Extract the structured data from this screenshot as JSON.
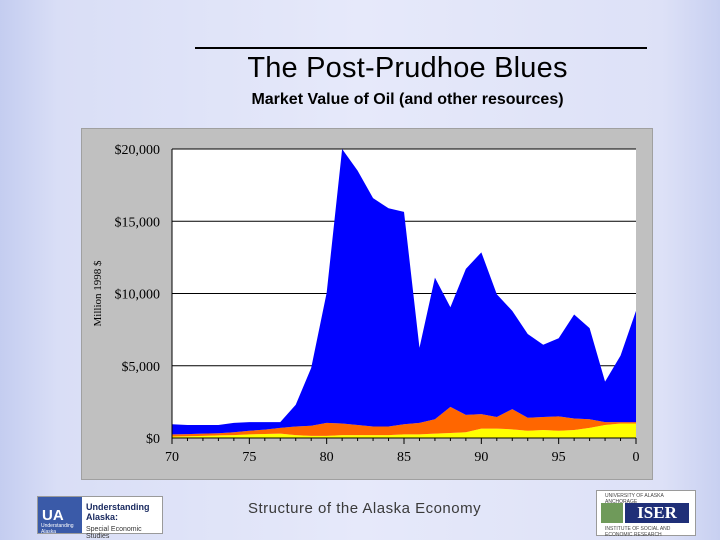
{
  "slide": {
    "title": "The Post-Prudhoe Blues",
    "subtitle": "Market Value of Oil (and other resources)",
    "footer": "Structure of the Alaska Economy"
  },
  "logos": {
    "left_mark": "UA",
    "left_mark_small": "Understanding Alaska",
    "left_title": "Understanding Alaska:",
    "left_sub": "Special Economic Studies",
    "right_name": "ISER",
    "right_top": "UNIVERSITY OF ALASKA ANCHORAGE",
    "right_bottom": "INSTITUTE OF SOCIAL AND ECONOMIC RESEARCH"
  },
  "colors": {
    "oil": "#0000ff",
    "orange": "#ff6600",
    "yellow": "#ffff00",
    "plot_bg": "#ffffff",
    "frame_bg": "#c0c0c0"
  },
  "chart_data": {
    "type": "area",
    "stacked": true,
    "title": "",
    "xlabel": "",
    "ylabel": "Million 1998 $",
    "ylim": [
      0,
      20000
    ],
    "xlim": [
      1970,
      2000
    ],
    "grid": {
      "horizontal": true,
      "vertical": false
    },
    "legend": "none",
    "y_ticks": [
      "$0",
      "$5,000",
      "$10,000",
      "$15,000",
      "$20,000"
    ],
    "x_ticks": [
      "70",
      "75",
      "80",
      "85",
      "90",
      "95",
      "0"
    ],
    "x": [
      1970,
      1971,
      1972,
      1973,
      1974,
      1975,
      1976,
      1977,
      1978,
      1979,
      1980,
      1981,
      1982,
      1983,
      1984,
      1985,
      1986,
      1987,
      1988,
      1989,
      1990,
      1991,
      1992,
      1993,
      1994,
      1995,
      1996,
      1997,
      1998,
      1999,
      2000
    ],
    "series": [
      {
        "color": "#ffff00",
        "values": [
          100,
          120,
          150,
          180,
          200,
          250,
          280,
          300,
          200,
          150,
          150,
          200,
          200,
          200,
          200,
          250,
          250,
          300,
          350,
          400,
          650,
          650,
          600,
          500,
          550,
          500,
          550,
          700,
          900,
          1000,
          1000
        ]
      },
      {
        "color": "#ff6600",
        "values": [
          150,
          150,
          150,
          150,
          200,
          250,
          300,
          400,
          600,
          700,
          900,
          800,
          700,
          600,
          600,
          700,
          800,
          1000,
          1800,
          1200,
          1000,
          800,
          1400,
          900,
          900,
          1000,
          800,
          600,
          200,
          100,
          100
        ]
      },
      {
        "color": "#0000ff",
        "values": [
          700,
          630,
          600,
          570,
          650,
          600,
          520,
          400,
          1500,
          4000,
          9000,
          19000,
          17600,
          15800,
          15100,
          14700,
          5200,
          9800,
          6900,
          10100,
          11200,
          8500,
          6800,
          5800,
          5000,
          5400,
          7200,
          6300,
          2800,
          4600,
          7700
        ]
      }
    ]
  }
}
